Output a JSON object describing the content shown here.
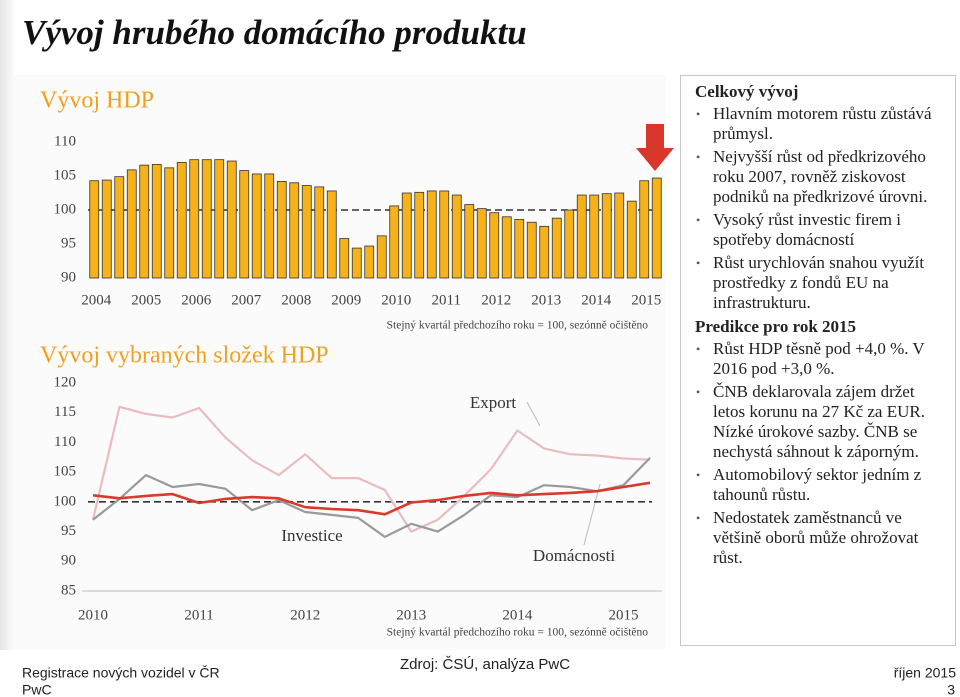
{
  "header": {
    "title": "Vývoj hrubého domácího produktu"
  },
  "chart_data": [
    {
      "type": "bar",
      "title": "Vývoj HDP",
      "subtitle": "Stejný kvartál předchozího roku = 100, sezónně očištěno",
      "categories": [
        "2004",
        null,
        null,
        null,
        "2005",
        null,
        null,
        null,
        "2006",
        null,
        null,
        null,
        "2007",
        null,
        null,
        null,
        "2008",
        null,
        null,
        null,
        "2009",
        null,
        null,
        null,
        "2010",
        null,
        null,
        null,
        "2011",
        null,
        null,
        null,
        "2012",
        null,
        null,
        null,
        "2013",
        null,
        null,
        null,
        "2014",
        null,
        null,
        null,
        "2015",
        null
      ],
      "values": [
        104.3,
        104.4,
        104.9,
        105.9,
        106.6,
        106.7,
        106.2,
        107.0,
        107.4,
        107.4,
        107.4,
        107.2,
        105.8,
        105.3,
        105.3,
        104.2,
        104.0,
        103.6,
        103.4,
        102.8,
        95.8,
        94.4,
        94.7,
        96.2,
        100.6,
        102.5,
        102.6,
        102.8,
        102.8,
        102.2,
        100.8,
        100.2,
        99.6,
        99.0,
        98.6,
        98.2,
        97.6,
        98.8,
        100.0,
        102.2,
        102.2,
        102.4,
        102.5,
        101.3,
        104.3,
        104.7
      ],
      "color": "#f5b21b",
      "ylim": [
        90,
        110
      ],
      "yticks": [
        90,
        95,
        100,
        105,
        110
      ],
      "reference": 100
    },
    {
      "type": "line",
      "title": "Vývoj vybraných složek HDP",
      "subtitle": "Stejný kvartál předchozího roku = 100, sezónně očištěno",
      "categories": [
        "2010",
        null,
        null,
        null,
        "2011",
        null,
        null,
        null,
        "2012",
        null,
        null,
        null,
        "2013",
        null,
        null,
        null,
        "2014",
        null,
        null,
        null,
        "2015",
        null
      ],
      "series": [
        {
          "name": "Export",
          "color": "#ebbcbc",
          "values": [
            97,
            116,
            114.8,
            114.2,
            115.8,
            110.8,
            107,
            104.5,
            108,
            104,
            104,
            102,
            95,
            97,
            101,
            105.5,
            112,
            109,
            108,
            107.8,
            107.3,
            107.1
          ]
        },
        {
          "name": "Investice",
          "color": "#9a9a9a",
          "values": [
            97,
            100.5,
            104.5,
            102.5,
            103,
            102.2,
            98.6,
            100.3,
            98.3,
            97.8,
            97.3,
            94.1,
            96.3,
            95,
            97.8,
            101.1,
            100.8,
            102.8,
            102.5,
            101.8,
            102.8,
            107.4
          ]
        },
        {
          "name": "Domácnosti",
          "color": "#d93a2b",
          "values": [
            101.1,
            100.6,
            101,
            101.3,
            99.8,
            100.5,
            100.8,
            100.6,
            99.1,
            98.8,
            98.6,
            97.9,
            99.9,
            100.3,
            101,
            101.5,
            101.1,
            101.3,
            101.5,
            101.8,
            102.5,
            103.2
          ]
        }
      ],
      "ylim": [
        85,
        120
      ],
      "yticks": [
        85,
        90,
        95,
        100,
        105,
        110,
        115,
        120
      ],
      "reference": 100
    }
  ],
  "panel": {
    "sections": [
      {
        "heading": "Celkový vývoj",
        "bullets": [
          "Hlavním motorem růstu zůstává průmysl.",
          "Nejvyšší růst od předkrizového roku 2007, rovněž ziskovost podniků na předkrizové úrovni.",
          "Vysoký růst investic firem i spotřeby domácností",
          "Růst urychlován snahou využít prostředky z fondů EU na infrastrukturu."
        ]
      },
      {
        "heading": "Predikce pro rok 2015",
        "bullets": [
          "Růst HDP těsně pod +4,0 %. V 2016 pod +3,0 %.",
          "ČNB deklarovala zájem držet letos korunu na 27 Kč za EUR. Nízké úrokové sazby. ČNB se nechystá sáhnout k záporným.",
          "Automobilový sektor jedním z tahounů růstu.",
          "Nedostatek zaměstnanců ve většině oborů může ohrožovat růst."
        ]
      }
    ]
  },
  "footer": {
    "left": "Registrace nových vozidel v ČR",
    "brand": "PwC",
    "source": "Zdroj: ČSÚ, analýza PwC",
    "date": "říjen 2015",
    "page": "3"
  }
}
